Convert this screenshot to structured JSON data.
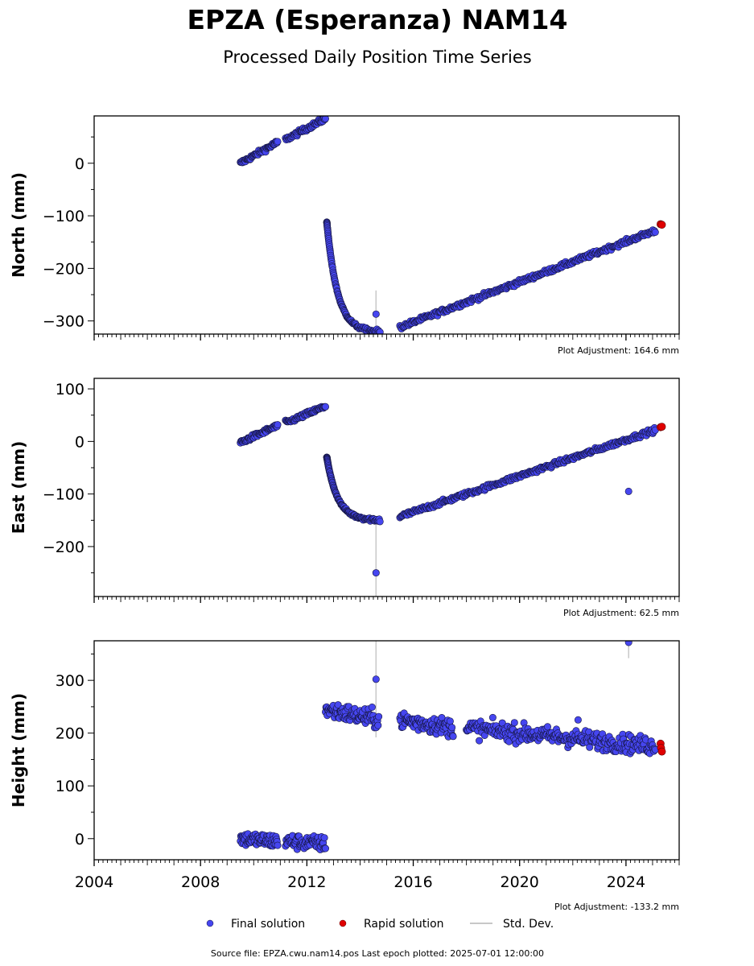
{
  "title": "EPZA (Esperanza) NAM14",
  "subtitle": "Processed Daily Position Time Series",
  "source_line": "Source file: EPZA.cwu.nam14.pos  Last epoch plotted: 2025-07-01 12:00:00",
  "legend": {
    "final": "Final solution",
    "rapid": "Rapid solution",
    "std": "Std. Dev."
  },
  "colors": {
    "final": "#4646f0",
    "final_edge": "#14143c",
    "rapid": "#e00000",
    "std": "#c8c8c8"
  },
  "chart_data": {
    "type": "scatter",
    "xlim": [
      2004,
      2026
    ],
    "x_ticks": [
      "2004",
      "2008",
      "2012",
      "2016",
      "2020",
      "2024"
    ],
    "panels": [
      {
        "ylabel": "North (mm)",
        "adjustment": "Plot Adjustment: 164.6 mm",
        "ylim": [
          -325,
          90
        ],
        "y_ticks": [
          "0",
          "−100",
          "−200",
          "−300"
        ],
        "segments": [
          {
            "t0": 2009.5,
            "v0": 0,
            "t1": 2010.9,
            "v1": 40,
            "n": 60,
            "noise": 3
          },
          {
            "t0": 2011.2,
            "v0": 45,
            "t1": 2012.7,
            "v1": 85,
            "n": 60,
            "noise": 3
          },
          {
            "t0": 2015.5,
            "v0": -312,
            "t1": 2025.1,
            "v1": -128,
            "n": 320,
            "noise": 3
          }
        ],
        "decay": {
          "t0": 2012.75,
          "t1": 2014.75,
          "v0": -112,
          "vend": -322,
          "tau": 0.4,
          "n": 110,
          "noise": 3
        },
        "outliers": [
          {
            "t": 2014.6,
            "v": -287,
            "err": 45
          }
        ],
        "rapid": [
          {
            "t": 2025.3,
            "v": -116
          },
          {
            "t": 2025.35,
            "v": -117
          }
        ]
      },
      {
        "ylabel": "East (mm)",
        "adjustment": "Plot Adjustment: 62.5 mm",
        "ylim": [
          -295,
          120
        ],
        "y_ticks": [
          "100",
          "0",
          "−100",
          "−200"
        ],
        "segments": [
          {
            "t0": 2009.5,
            "v0": -2,
            "t1": 2010.9,
            "v1": 30,
            "n": 60,
            "noise": 3
          },
          {
            "t0": 2011.2,
            "v0": 35,
            "t1": 2012.7,
            "v1": 67,
            "n": 60,
            "noise": 3
          },
          {
            "t0": 2015.5,
            "v0": -143,
            "t1": 2025.1,
            "v1": 22,
            "n": 320,
            "noise": 3
          }
        ],
        "decay": {
          "t0": 2012.75,
          "t1": 2014.75,
          "v0": -30,
          "vend": -150,
          "tau": 0.4,
          "n": 110,
          "noise": 3
        },
        "outliers": [
          {
            "t": 2014.6,
            "v": -250,
            "err": 100
          },
          {
            "t": 2024.1,
            "v": -95,
            "err": 5
          }
        ],
        "rapid": [
          {
            "t": 2025.3,
            "v": 27
          },
          {
            "t": 2025.35,
            "v": 28
          }
        ]
      },
      {
        "ylabel": "Height (mm)",
        "adjustment": "Plot Adjustment: -133.2 mm",
        "ylim": [
          -40,
          375
        ],
        "y_ticks": [
          "300",
          "200",
          "100",
          "0"
        ],
        "segments": [
          {
            "t0": 2009.5,
            "v0": 0,
            "t1": 2010.9,
            "v1": -5,
            "n": 70,
            "noise": 10
          },
          {
            "t0": 2011.2,
            "v0": -5,
            "t1": 2012.7,
            "v1": -10,
            "n": 70,
            "noise": 10
          },
          {
            "t0": 2012.7,
            "v0": 245,
            "t1": 2014.7,
            "v1": 225,
            "n": 90,
            "noise": 12
          },
          {
            "t0": 2015.5,
            "v0": 225,
            "t1": 2017.5,
            "v1": 210,
            "n": 90,
            "noise": 12
          },
          {
            "t0": 2018.0,
            "v0": 210,
            "t1": 2025.1,
            "v1": 175,
            "n": 280,
            "noise": 12
          }
        ],
        "outliers": [
          {
            "t": 2014.6,
            "v": 302,
            "err": 110
          },
          {
            "t": 2024.1,
            "v": 372,
            "err": 30
          },
          {
            "t": 2022.2,
            "v": 225,
            "err": 5
          }
        ],
        "rapid": [
          {
            "t": 2025.3,
            "v": 180
          },
          {
            "t": 2025.32,
            "v": 172
          },
          {
            "t": 2025.35,
            "v": 165
          }
        ]
      }
    ]
  }
}
